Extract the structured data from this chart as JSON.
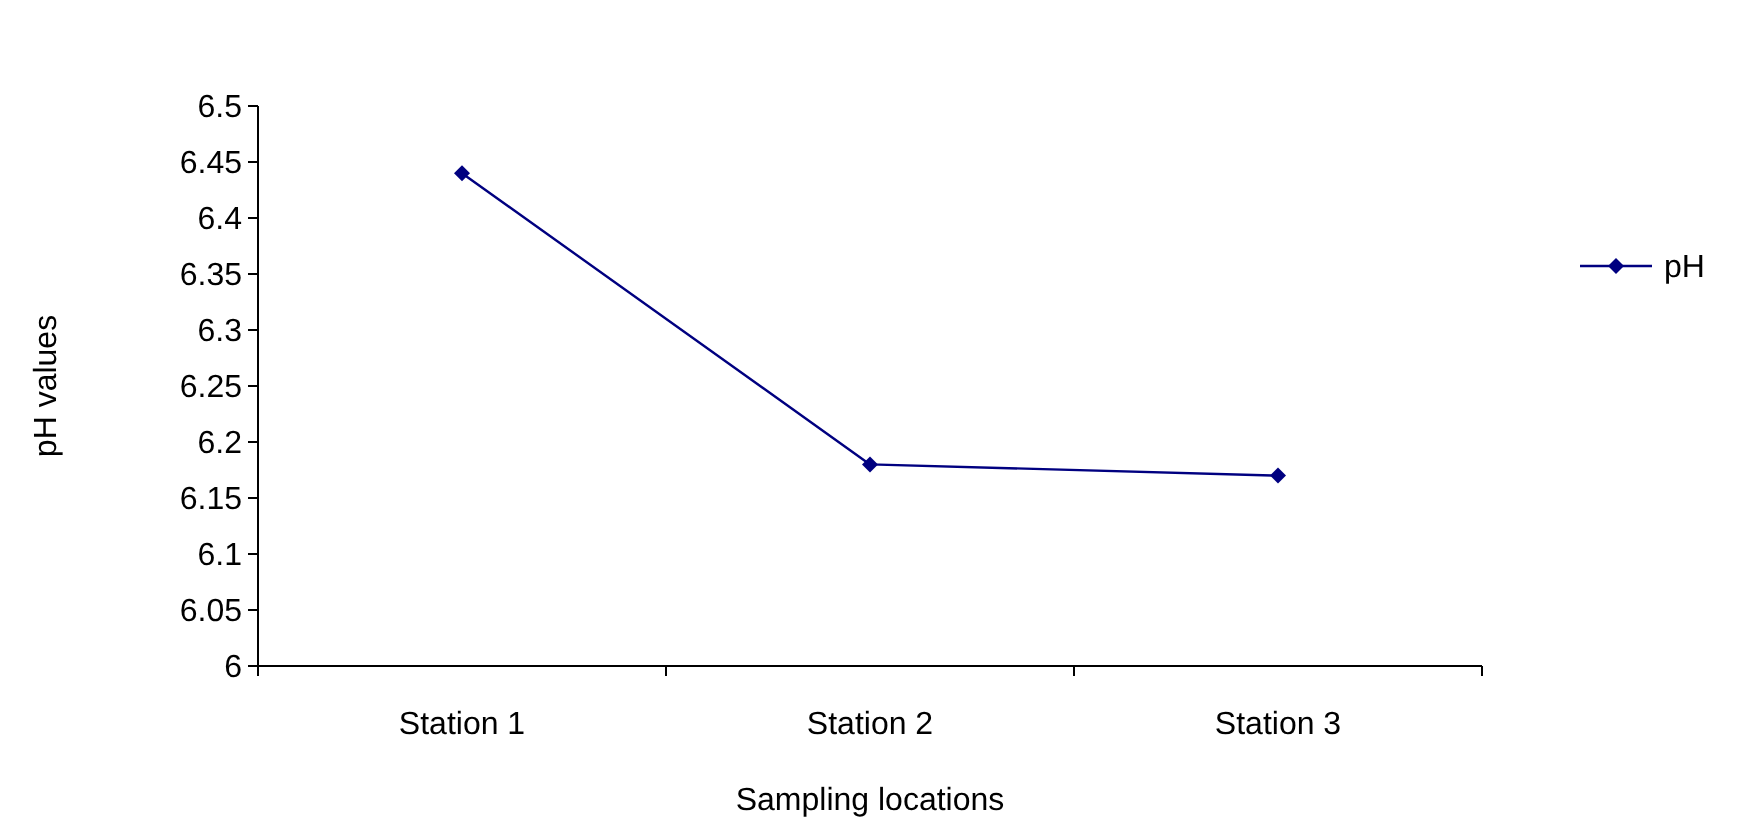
{
  "chart_data": {
    "type": "line",
    "xlabel": "Sampling locations",
    "ylabel": "pH values",
    "categories": [
      "Station 1",
      "Station 2",
      "Station 3"
    ],
    "series": [
      {
        "name": "pH",
        "color": "#000080",
        "values": [
          6.44,
          6.18,
          6.17
        ]
      }
    ],
    "ylim": [
      6,
      6.5
    ],
    "yticks": [
      6,
      6.05,
      6.1,
      6.15,
      6.2,
      6.25,
      6.3,
      6.35,
      6.4,
      6.45,
      6.5
    ],
    "grid": false,
    "legend": "right",
    "marker": "diamond",
    "line_style": "solid"
  }
}
